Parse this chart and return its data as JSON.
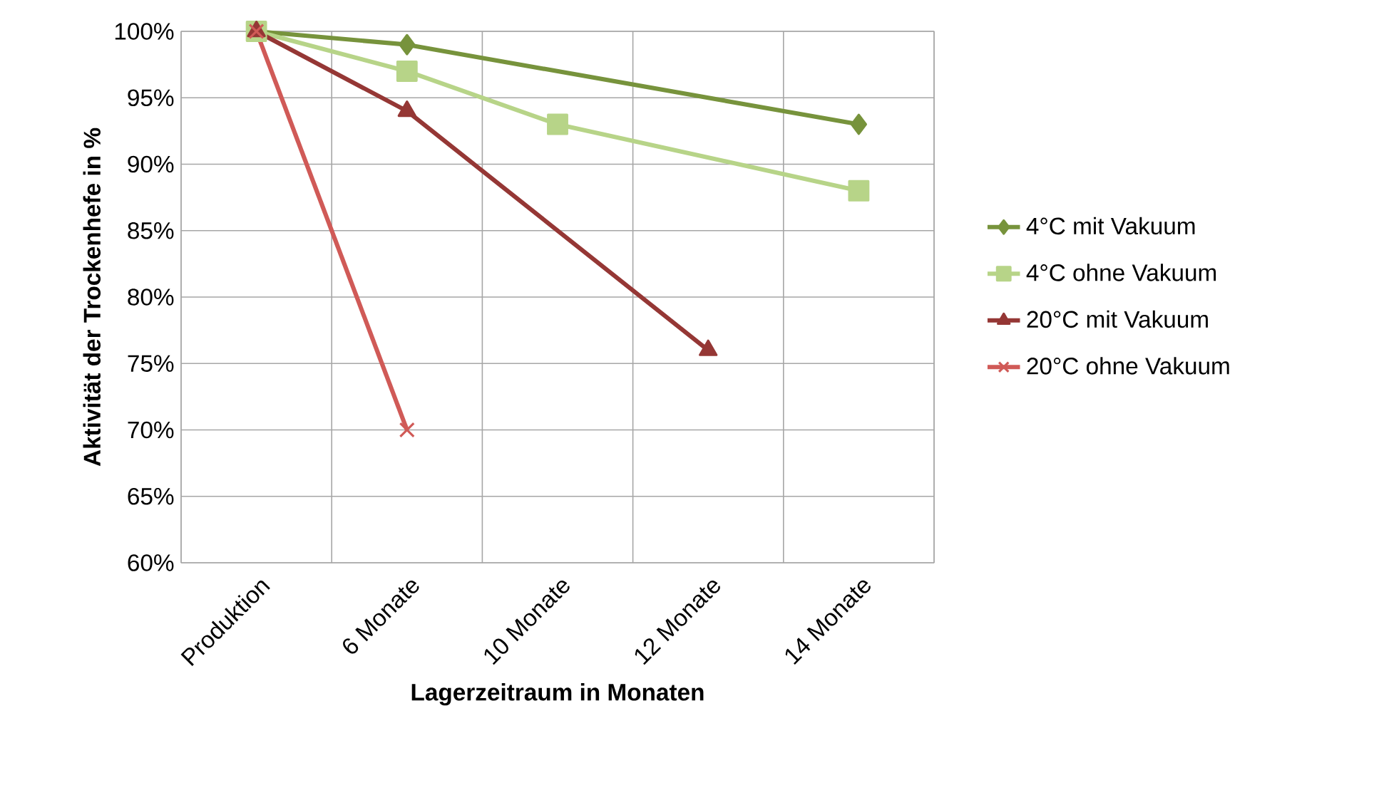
{
  "chart_data": {
    "type": "line",
    "xlabel": "Lagerzeitraum in Monaten",
    "ylabel": "Aktivität der Trockenhefe in %",
    "categories": [
      "Produktion",
      "6 Monate",
      "10 Monate",
      "12 Monate",
      "14 Monate"
    ],
    "series": [
      {
        "name": "4°C mit Vakuum",
        "color": "#77933c",
        "marker": "diamond",
        "values": [
          100,
          99,
          null,
          null,
          93
        ]
      },
      {
        "name": "4°C ohne Vakuum",
        "color": "#b7d488",
        "marker": "square",
        "values": [
          100,
          97,
          93,
          null,
          88
        ]
      },
      {
        "name": "20°C  mit Vakuum",
        "color": "#953735",
        "marker": "triangle",
        "values": [
          100,
          94,
          null,
          76,
          null
        ]
      },
      {
        "name": "20°C  ohne Vakuum",
        "color": "#d05a57",
        "marker": "cross",
        "values": [
          100,
          70,
          null,
          null,
          null
        ]
      }
    ],
    "ylim": [
      60,
      100
    ],
    "yticks": [
      {
        "value": 60,
        "label": "60%"
      },
      {
        "value": 65,
        "label": "65%"
      },
      {
        "value": 70,
        "label": "70%"
      },
      {
        "value": 75,
        "label": "75%"
      },
      {
        "value": 80,
        "label": "80%"
      },
      {
        "value": 85,
        "label": "85%"
      },
      {
        "value": 90,
        "label": "90%"
      },
      {
        "value": 95,
        "label": "95%"
      },
      {
        "value": 100,
        "label": "100%"
      }
    ],
    "grid": true,
    "legend": "right",
    "line_style": "solid"
  }
}
